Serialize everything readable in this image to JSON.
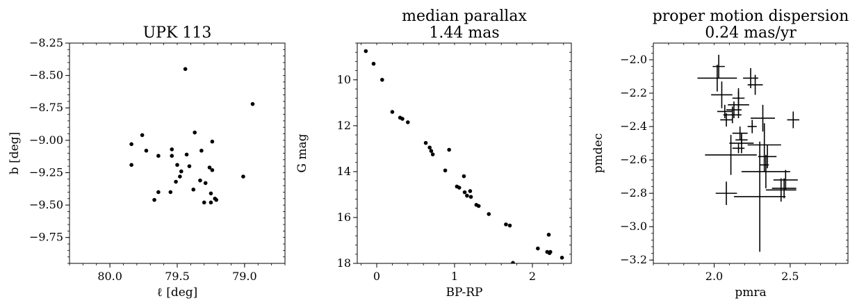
{
  "chart_data": [
    {
      "type": "scatter",
      "title": "UPK 113",
      "xlabel": "ℓ [deg]",
      "ylabel": "b [deg]",
      "xlim": [
        80.3,
        78.7
      ],
      "ylim": [
        -9.95,
        -8.25
      ],
      "xticks": [
        80.0,
        79.5,
        79.0
      ],
      "xtick_labels": [
        "80.0",
        "79.5",
        "79.0"
      ],
      "yticks": [
        -8.25,
        -8.5,
        -8.75,
        -9.0,
        -9.25,
        -9.5,
        -9.75
      ],
      "ytick_labels": [
        "−8.25",
        "−8.50",
        "−8.75",
        "−9.00",
        "−9.25",
        "−9.50",
        "−9.75"
      ],
      "grid": false,
      "points": [
        {
          "x": 79.44,
          "y": -8.45
        },
        {
          "x": 78.94,
          "y": -8.72
        },
        {
          "x": 79.84,
          "y": -9.03
        },
        {
          "x": 79.76,
          "y": -8.96
        },
        {
          "x": 79.37,
          "y": -8.94
        },
        {
          "x": 79.24,
          "y": -9.01
        },
        {
          "x": 79.73,
          "y": -9.08
        },
        {
          "x": 79.54,
          "y": -9.07
        },
        {
          "x": 79.32,
          "y": -9.08
        },
        {
          "x": 79.43,
          "y": -9.11
        },
        {
          "x": 79.64,
          "y": -9.12
        },
        {
          "x": 79.54,
          "y": -9.12
        },
        {
          "x": 79.84,
          "y": -9.19
        },
        {
          "x": 79.5,
          "y": -9.19
        },
        {
          "x": 79.41,
          "y": -9.2
        },
        {
          "x": 79.26,
          "y": -9.21
        },
        {
          "x": 79.24,
          "y": -9.23
        },
        {
          "x": 79.47,
          "y": -9.24
        },
        {
          "x": 79.48,
          "y": -9.28
        },
        {
          "x": 79.01,
          "y": -9.28
        },
        {
          "x": 79.51,
          "y": -9.32
        },
        {
          "x": 79.33,
          "y": -9.31
        },
        {
          "x": 79.29,
          "y": -9.33
        },
        {
          "x": 79.38,
          "y": -9.38
        },
        {
          "x": 79.64,
          "y": -9.4
        },
        {
          "x": 79.55,
          "y": -9.4
        },
        {
          "x": 79.25,
          "y": -9.41
        },
        {
          "x": 79.67,
          "y": -9.46
        },
        {
          "x": 79.22,
          "y": -9.45
        },
        {
          "x": 79.21,
          "y": -9.46
        },
        {
          "x": 79.3,
          "y": -9.48
        },
        {
          "x": 79.25,
          "y": -9.48
        }
      ]
    },
    {
      "type": "scatter",
      "title": "median parallax\n1.44 mas",
      "xlabel": "BP-RP",
      "ylabel": "G mag",
      "xlim": [
        -0.25,
        2.5
      ],
      "ylim": [
        18.0,
        8.4
      ],
      "y_inverted": true,
      "xticks": [
        0,
        1,
        2
      ],
      "xtick_labels": [
        "0",
        "1",
        "2"
      ],
      "yticks": [
        10,
        12,
        14,
        16,
        18
      ],
      "ytick_labels": [
        "10",
        "12",
        "14",
        "16",
        "18"
      ],
      "grid": false,
      "points": [
        {
          "x": -0.14,
          "y": 8.75
        },
        {
          "x": -0.04,
          "y": 9.3
        },
        {
          "x": 0.07,
          "y": 10.0
        },
        {
          "x": 0.2,
          "y": 11.4
        },
        {
          "x": 0.3,
          "y": 11.65
        },
        {
          "x": 0.33,
          "y": 11.7
        },
        {
          "x": 0.4,
          "y": 11.85
        },
        {
          "x": 0.63,
          "y": 12.75
        },
        {
          "x": 0.68,
          "y": 12.95
        },
        {
          "x": 0.7,
          "y": 13.1
        },
        {
          "x": 0.93,
          "y": 13.05
        },
        {
          "x": 0.72,
          "y": 13.25
        },
        {
          "x": 0.88,
          "y": 13.95
        },
        {
          "x": 1.12,
          "y": 14.2
        },
        {
          "x": 1.03,
          "y": 14.65
        },
        {
          "x": 1.06,
          "y": 14.7
        },
        {
          "x": 1.13,
          "y": 14.9
        },
        {
          "x": 1.2,
          "y": 14.85
        },
        {
          "x": 1.16,
          "y": 15.05
        },
        {
          "x": 1.21,
          "y": 15.1
        },
        {
          "x": 1.28,
          "y": 15.45
        },
        {
          "x": 1.31,
          "y": 15.5
        },
        {
          "x": 1.44,
          "y": 15.85
        },
        {
          "x": 1.66,
          "y": 16.3
        },
        {
          "x": 1.71,
          "y": 16.35
        },
        {
          "x": 2.21,
          "y": 16.75
        },
        {
          "x": 2.07,
          "y": 17.35
        },
        {
          "x": 2.19,
          "y": 17.5
        },
        {
          "x": 2.22,
          "y": 17.55
        },
        {
          "x": 2.23,
          "y": 17.5
        },
        {
          "x": 2.38,
          "y": 17.75
        },
        {
          "x": 1.75,
          "y": 17.98
        }
      ]
    },
    {
      "type": "scatter",
      "title": "proper motion dispersion\n0.24 mas/yr",
      "xlabel": "pmra",
      "ylabel": "pmdec",
      "xlim": [
        1.6,
        2.88
      ],
      "ylim": [
        -3.22,
        -1.9
      ],
      "xticks": [
        2.0,
        2.5
      ],
      "xtick_labels": [
        "2.0",
        "2.5"
      ],
      "yticks": [
        -2.0,
        -2.2,
        -2.4,
        -2.6,
        -2.8,
        -3.0,
        -3.2
      ],
      "ytick_labels": [
        "−2.0",
        "−2.2",
        "−2.4",
        "−2.6",
        "−2.8",
        "−3.0",
        "−3.2"
      ],
      "grid": false,
      "error_bars": true,
      "points": [
        {
          "x": 2.03,
          "y": -2.04,
          "xerr": 0.04,
          "yerr": 0.07
        },
        {
          "x": 2.02,
          "y": -2.11,
          "xerr": 0.13,
          "yerr": 0.08
        },
        {
          "x": 2.24,
          "y": -2.11,
          "xerr": 0.05,
          "yerr": 0.06
        },
        {
          "x": 2.27,
          "y": -2.15,
          "xerr": 0.05,
          "yerr": 0.06
        },
        {
          "x": 2.05,
          "y": -2.21,
          "xerr": 0.07,
          "yerr": 0.08
        },
        {
          "x": 2.16,
          "y": -2.23,
          "xerr": 0.04,
          "yerr": 0.06
        },
        {
          "x": 2.16,
          "y": -2.27,
          "xerr": 0.07,
          "yerr": 0.08
        },
        {
          "x": 2.13,
          "y": -2.3,
          "xerr": 0.05,
          "yerr": 0.05
        },
        {
          "x": 2.07,
          "y": -2.31,
          "xerr": 0.05,
          "yerr": 0.04
        },
        {
          "x": 2.12,
          "y": -2.33,
          "xerr": 0.06,
          "yerr": 0.05
        },
        {
          "x": 2.32,
          "y": -2.35,
          "xerr": 0.08,
          "yerr": 0.08
        },
        {
          "x": 2.08,
          "y": -2.36,
          "xerr": 0.04,
          "yerr": 0.04
        },
        {
          "x": 2.52,
          "y": -2.36,
          "xerr": 0.04,
          "yerr": 0.05
        },
        {
          "x": 2.25,
          "y": -2.4,
          "xerr": 0.03,
          "yerr": 0.04
        },
        {
          "x": 2.17,
          "y": -2.44,
          "xerr": 0.05,
          "yerr": 0.04
        },
        {
          "x": 2.18,
          "y": -2.48,
          "xerr": 0.04,
          "yerr": 0.03
        },
        {
          "x": 2.18,
          "y": -2.5,
          "xerr": 0.08,
          "yerr": 0.06
        },
        {
          "x": 2.33,
          "y": -2.51,
          "xerr": 0.11,
          "yerr": 0.13
        },
        {
          "x": 2.16,
          "y": -2.53,
          "xerr": 0.04,
          "yerr": 0.03
        },
        {
          "x": 2.11,
          "y": -2.57,
          "xerr": 0.17,
          "yerr": 0.12
        },
        {
          "x": 2.35,
          "y": -2.58,
          "xerr": 0.06,
          "yerr": 0.07
        },
        {
          "x": 2.33,
          "y": -2.63,
          "xerr": 0.03,
          "yerr": 0.04
        },
        {
          "x": 2.34,
          "y": -2.67,
          "xerr": 0.16,
          "yerr": 0.1
        },
        {
          "x": 2.47,
          "y": -2.72,
          "xerr": 0.08,
          "yerr": 0.06
        },
        {
          "x": 2.46,
          "y": -2.77,
          "xerr": 0.08,
          "yerr": 0.06
        },
        {
          "x": 2.44,
          "y": -2.78,
          "xerr": 0.1,
          "yerr": 0.07
        },
        {
          "x": 2.08,
          "y": -2.8,
          "xerr": 0.07,
          "yerr": 0.07
        },
        {
          "x": 2.3,
          "y": -2.82,
          "xerr": 0.17,
          "yerr": 0.33
        }
      ]
    }
  ]
}
